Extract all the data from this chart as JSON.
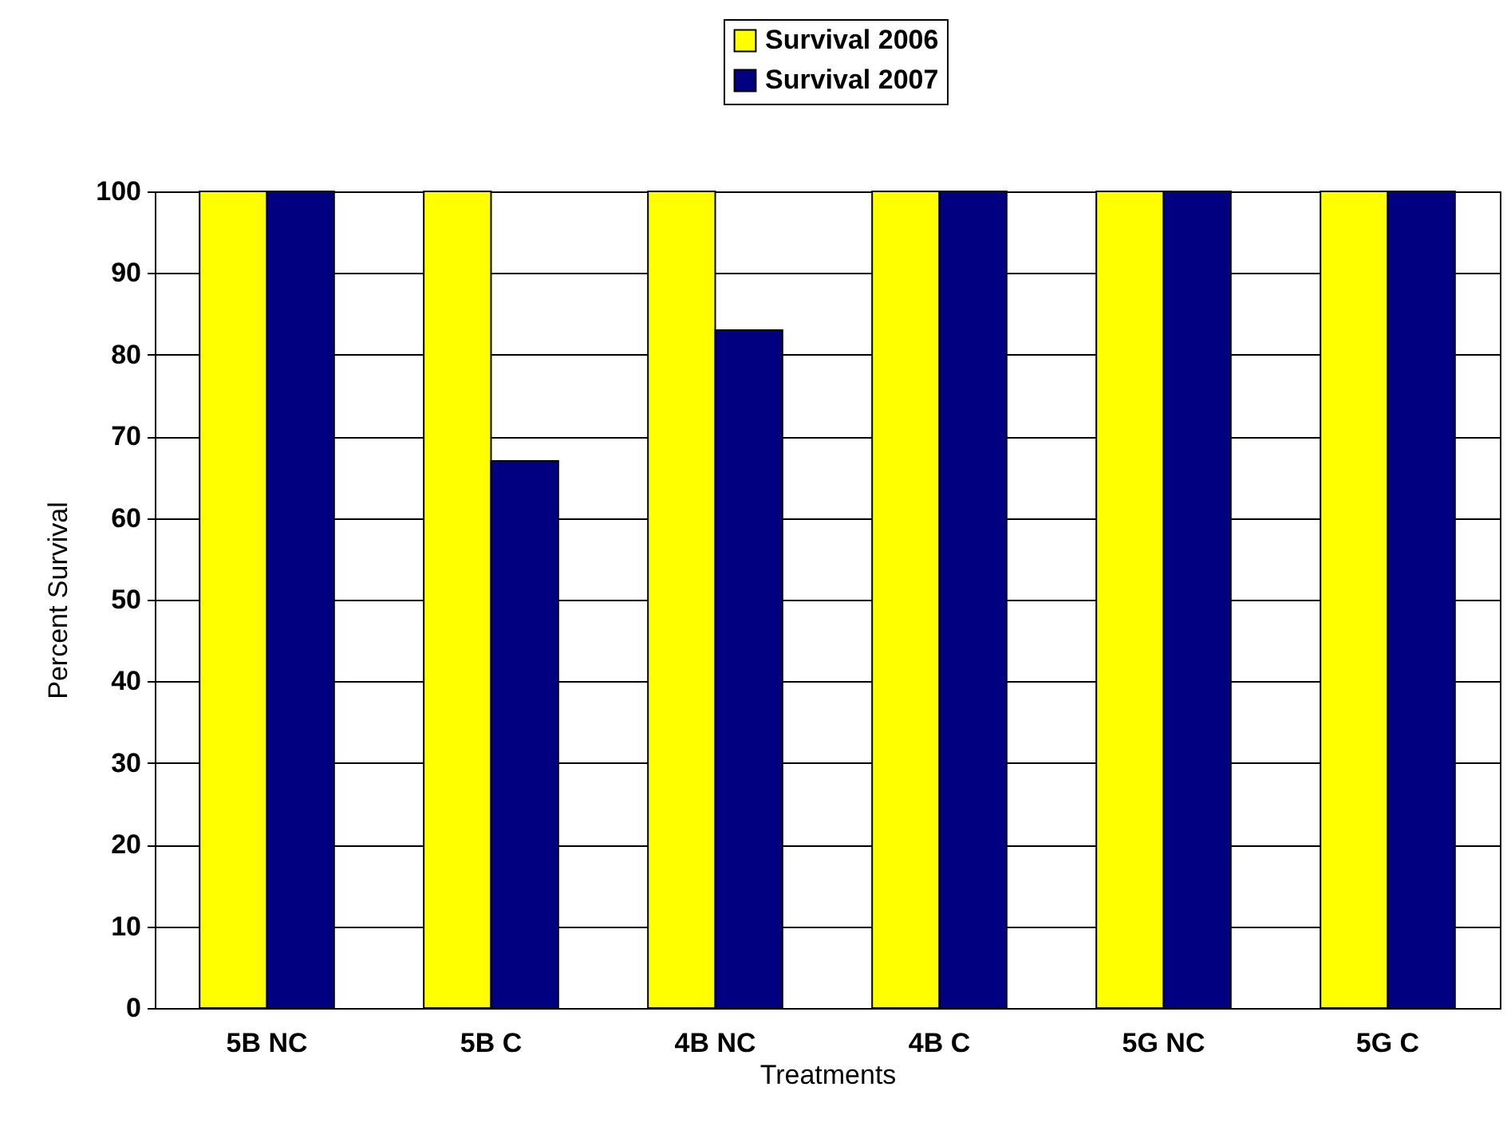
{
  "chart_data": {
    "type": "bar",
    "xlabel": "Treatments",
    "ylabel": "Percent Survival",
    "categories": [
      "5B NC",
      "5B C",
      "4B NC",
      "4B C",
      "5G NC",
      "5G C"
    ],
    "series": [
      {
        "name": "Survival 2006",
        "color": "#ffff00",
        "values": [
          100,
          100,
          100,
          100,
          100,
          100
        ]
      },
      {
        "name": "Survival 2007",
        "color": "#000080",
        "values": [
          100,
          67,
          83,
          100,
          100,
          100
        ]
      }
    ],
    "ylim": [
      0,
      100
    ],
    "yticks": [
      0,
      10,
      20,
      30,
      40,
      50,
      60,
      70,
      80,
      90,
      100
    ],
    "grid": "y",
    "legend": "top"
  }
}
